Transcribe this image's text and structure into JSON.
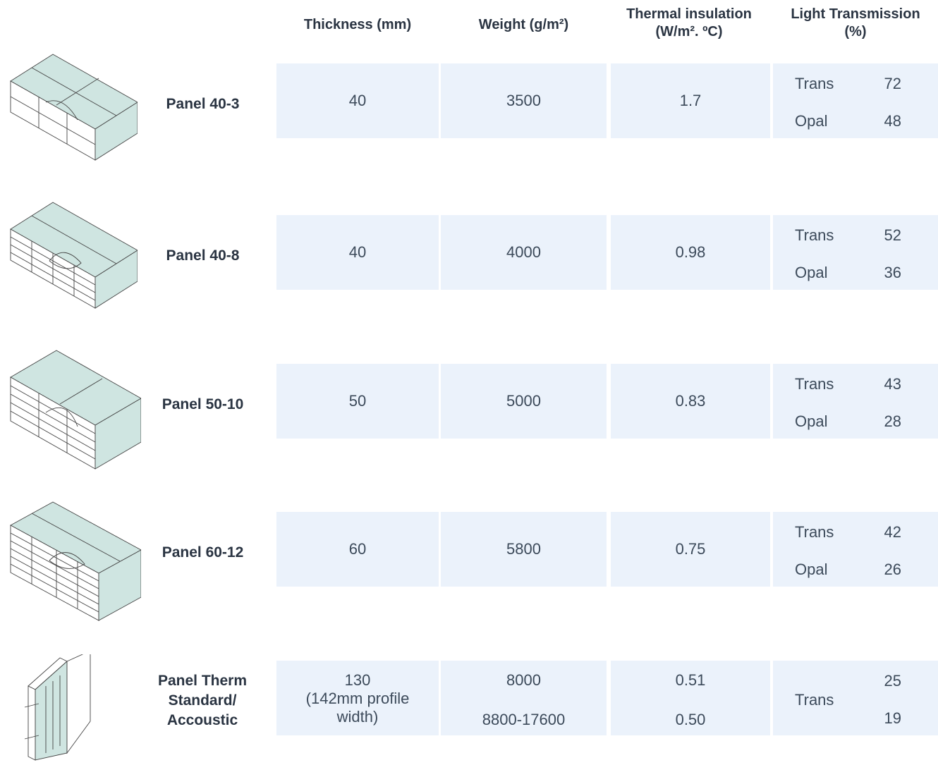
{
  "headers": {
    "thickness": "Thickness (mm)",
    "weight": "Weight (g/m²)",
    "thermal_line1": "Thermal insulation",
    "thermal_line2": "(W/m². ºC)",
    "light_line1": "Light Transmission",
    "light_line2": "(%)"
  },
  "rows": [
    {
      "name": "Panel 40-3",
      "thickness": "40",
      "weight": "3500",
      "thermal": "1.7",
      "light": [
        {
          "label": "Trans",
          "value": "72"
        },
        {
          "label": "Opal",
          "value": "48"
        }
      ]
    },
    {
      "name": "Panel 40-8",
      "thickness": "40",
      "weight": "4000",
      "thermal": "0.98",
      "light": [
        {
          "label": "Trans",
          "value": "52"
        },
        {
          "label": "Opal",
          "value": "36"
        }
      ]
    },
    {
      "name": "Panel 50-10",
      "thickness": "50",
      "weight": "5000",
      "thermal": "0.83",
      "light": [
        {
          "label": "Trans",
          "value": "43"
        },
        {
          "label": "Opal",
          "value": "28"
        }
      ]
    },
    {
      "name": "Panel 60-12",
      "thickness": "60",
      "weight": "5800",
      "thermal": "0.75",
      "light": [
        {
          "label": "Trans",
          "value": "42"
        },
        {
          "label": "Opal",
          "value": "26"
        }
      ]
    }
  ],
  "therm": {
    "name_line1": "Panel Therm",
    "name_line2": "Standard/",
    "name_line3": "Accoustic",
    "thickness_line1": "130",
    "thickness_line2": "(142mm profile",
    "thickness_line3": "width)",
    "weight_standard": "8000",
    "weight_accoustic": "8800-17600",
    "thermal_standard": "0.51",
    "thermal_accoustic": "0.50",
    "light_label": "Trans",
    "light_standard": "25",
    "light_accoustic": "19"
  },
  "colors": {
    "cell_bg": "#ebf2fb",
    "panel_fill": "#cfe5e1"
  }
}
